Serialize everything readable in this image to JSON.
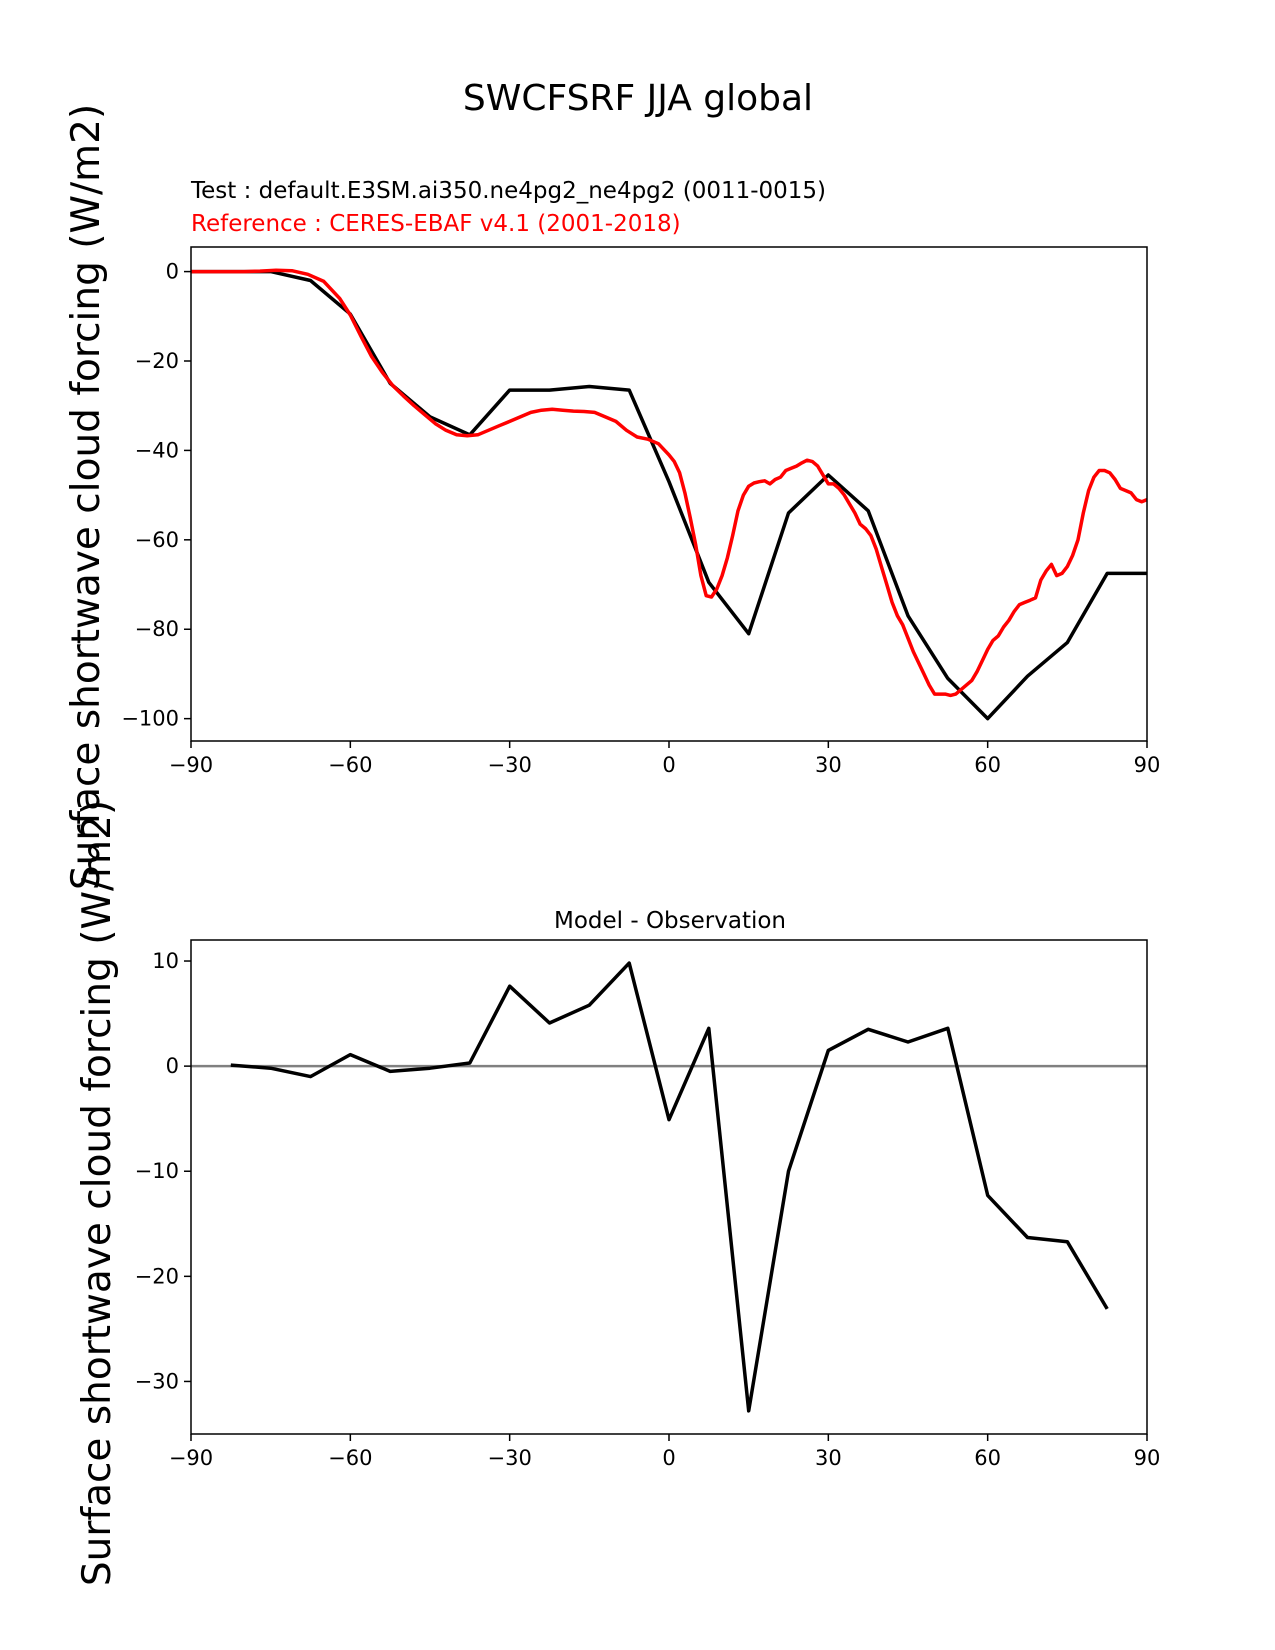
{
  "figure": {
    "suptitle": "SWCFSRF JJA global",
    "colors": {
      "test": "#000000",
      "reference": "#ff0000",
      "zero_line": "#808080"
    }
  },
  "chart_data": [
    {
      "type": "line",
      "title_test": "Test : default.E3SM.ai350.ne4pg2_ne4pg2 (0011-0015)",
      "title_reference": "Reference : CERES-EBAF v4.1 (2001-2018)",
      "ylabel": "Surface shortwave cloud forcing (W/m2)",
      "xlim": [
        -90,
        90
      ],
      "ylim": [
        -105,
        5.5
      ],
      "xticks": [
        -90,
        -60,
        -30,
        0,
        30,
        60,
        90
      ],
      "xtick_labels": [
        "−90",
        "−60",
        "−30",
        "0",
        "30",
        "60",
        "90"
      ],
      "yticks": [
        0,
        -20,
        -40,
        -60,
        -80,
        -100
      ],
      "ytick_labels": [
        "0",
        "−20",
        "−40",
        "−60",
        "−80",
        "−100"
      ],
      "grid": false,
      "series": [
        {
          "key": "test",
          "x": [
            -90,
            -82.5,
            -75,
            -67.5,
            -60,
            -52.5,
            -45,
            -37.5,
            -30,
            -22.5,
            -15,
            -7.5,
            0,
            7.5,
            15,
            22.5,
            30,
            37.5,
            45,
            52.5,
            60,
            67.5,
            75,
            82.5,
            90
          ],
          "y": [
            0,
            0,
            0,
            -2,
            -9.5,
            -25,
            -32.5,
            -36.5,
            -26.5,
            -26.5,
            -25.7,
            -26.5,
            -47,
            -69.5,
            -81,
            -54,
            -45.5,
            -53.5,
            -77,
            -91,
            -100,
            -90.5,
            -83,
            -67.5,
            -67.5
          ]
        },
        {
          "key": "reference",
          "x": [
            -90,
            -85,
            -80,
            -77,
            -74,
            -71,
            -68,
            -65,
            -62,
            -60,
            -58,
            -56,
            -54,
            -52,
            -50,
            -48,
            -46,
            -44,
            -42,
            -40,
            -38,
            -36,
            -34,
            -32,
            -30,
            -28,
            -26,
            -24,
            -22,
            -20,
            -18,
            -16,
            -14,
            -12,
            -10,
            -8,
            -6,
            -4,
            -2,
            0,
            1,
            2,
            3,
            4,
            5,
            6,
            7,
            8,
            9,
            10,
            11,
            12,
            13,
            14,
            15,
            16,
            17,
            18,
            19,
            20,
            21,
            22,
            23,
            24,
            25,
            26,
            27,
            28,
            29,
            30,
            31,
            32,
            33,
            34,
            35,
            36,
            37,
            38,
            39,
            40,
            41,
            42,
            43,
            44,
            45,
            46,
            47,
            48,
            49,
            50,
            51,
            52,
            53,
            54,
            55,
            56,
            57,
            58,
            59,
            60,
            61,
            62,
            63,
            64,
            65,
            66,
            67,
            68,
            69,
            70,
            71,
            72,
            73,
            74,
            75,
            76,
            77,
            78,
            79,
            80,
            81,
            82,
            83,
            84,
            85,
            86,
            87,
            88,
            89,
            90
          ],
          "y": [
            0,
            0,
            0,
            0.1,
            0.3,
            0.2,
            -0.6,
            -2.2,
            -6,
            -9.7,
            -14.5,
            -19,
            -22.5,
            -25.5,
            -27.8,
            -30,
            -32,
            -34,
            -35.5,
            -36.5,
            -36.7,
            -36.5,
            -35.5,
            -34.5,
            -33.5,
            -32.5,
            -31.5,
            -31,
            -30.8,
            -31,
            -31.2,
            -31.3,
            -31.5,
            -32.5,
            -33.5,
            -35.5,
            -37,
            -37.5,
            -38.5,
            -41,
            -42.5,
            -45,
            -49.5,
            -55,
            -61,
            -68,
            -72.5,
            -72.8,
            -71,
            -68,
            -64,
            -59,
            -53.5,
            -50,
            -48,
            -47.3,
            -47,
            -46.8,
            -47.5,
            -46.5,
            -46,
            -44.5,
            -44,
            -43.5,
            -42.8,
            -42.2,
            -42.5,
            -43.5,
            -45.5,
            -47.5,
            -47.5,
            -48.5,
            -50,
            -52,
            -54,
            -56.5,
            -57.5,
            -59,
            -62,
            -66,
            -70,
            -74,
            -77,
            -79,
            -82,
            -85,
            -87.5,
            -90,
            -92.5,
            -94.5,
            -94.5,
            -94.5,
            -94.8,
            -94.5,
            -93.5,
            -92.5,
            -91.5,
            -89.5,
            -87,
            -84.5,
            -82.5,
            -81.5,
            -79.5,
            -78,
            -76,
            -74.5,
            -74,
            -73.5,
            -73,
            -69,
            -67,
            -65.5,
            -68,
            -67.5,
            -66,
            -63.5,
            -60,
            -54,
            -49,
            -46,
            -44.5,
            -44.5,
            -45,
            -46.5,
            -48.5,
            -49,
            -49.5,
            -51,
            -51.5,
            -51
          ]
        }
      ]
    },
    {
      "type": "line",
      "title": "Model - Observation",
      "ylabel": "Surface shortwave cloud forcing (W/m2)",
      "xlim": [
        -90,
        90
      ],
      "ylim": [
        -35,
        12
      ],
      "xticks": [
        -90,
        -60,
        -30,
        0,
        30,
        60,
        90
      ],
      "xtick_labels": [
        "−90",
        "−60",
        "−30",
        "0",
        "30",
        "60",
        "90"
      ],
      "yticks": [
        10,
        0,
        -10,
        -20,
        -30
      ],
      "ytick_labels": [
        "10",
        "0",
        "−10",
        "−20",
        "−30"
      ],
      "grid": false,
      "zero_line": true,
      "series": [
        {
          "key": "test",
          "x": [
            -82.5,
            -75,
            -67.5,
            -60,
            -52.5,
            -45,
            -37.5,
            -30,
            -22.5,
            -15,
            -7.5,
            0,
            7.5,
            15,
            22.5,
            30,
            37.5,
            45,
            52.5,
            60,
            67.5,
            75,
            82.5
          ],
          "y": [
            0.1,
            -0.2,
            -1,
            1.1,
            -0.5,
            -0.2,
            0.3,
            7.6,
            4.1,
            5.8,
            9.8,
            -5.1,
            3.6,
            -32.8,
            -10,
            1.5,
            3.5,
            2.3,
            3.6,
            -12.3,
            -16.3,
            -16.7,
            -23.1
          ]
        }
      ]
    }
  ]
}
